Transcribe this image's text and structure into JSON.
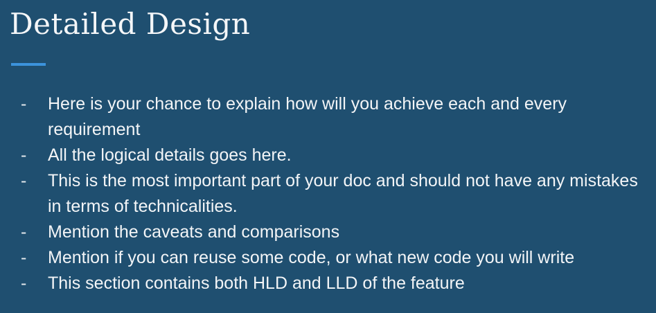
{
  "slide": {
    "title": "Detailed Design",
    "bullets": [
      {
        "dash": "-",
        "text": "Here is your chance to explain how will you achieve each and every requirement"
      },
      {
        "dash": "-",
        "text": "All the logical details goes here."
      },
      {
        "dash": "-",
        "text": "This is the most important part of your doc and should not have any mistakes in terms of technicalities."
      },
      {
        "dash": "-",
        "text": "Mention the caveats and comparisons"
      },
      {
        "dash": "-",
        "text": "Mention if you can reuse some code, or what new code you will write"
      },
      {
        "dash": "-",
        "text": "This section contains both HLD and LLD of the feature"
      }
    ]
  },
  "colors": {
    "background": "#1f4f70",
    "accent": "#3c93dc",
    "text": "#f3f5f7"
  }
}
